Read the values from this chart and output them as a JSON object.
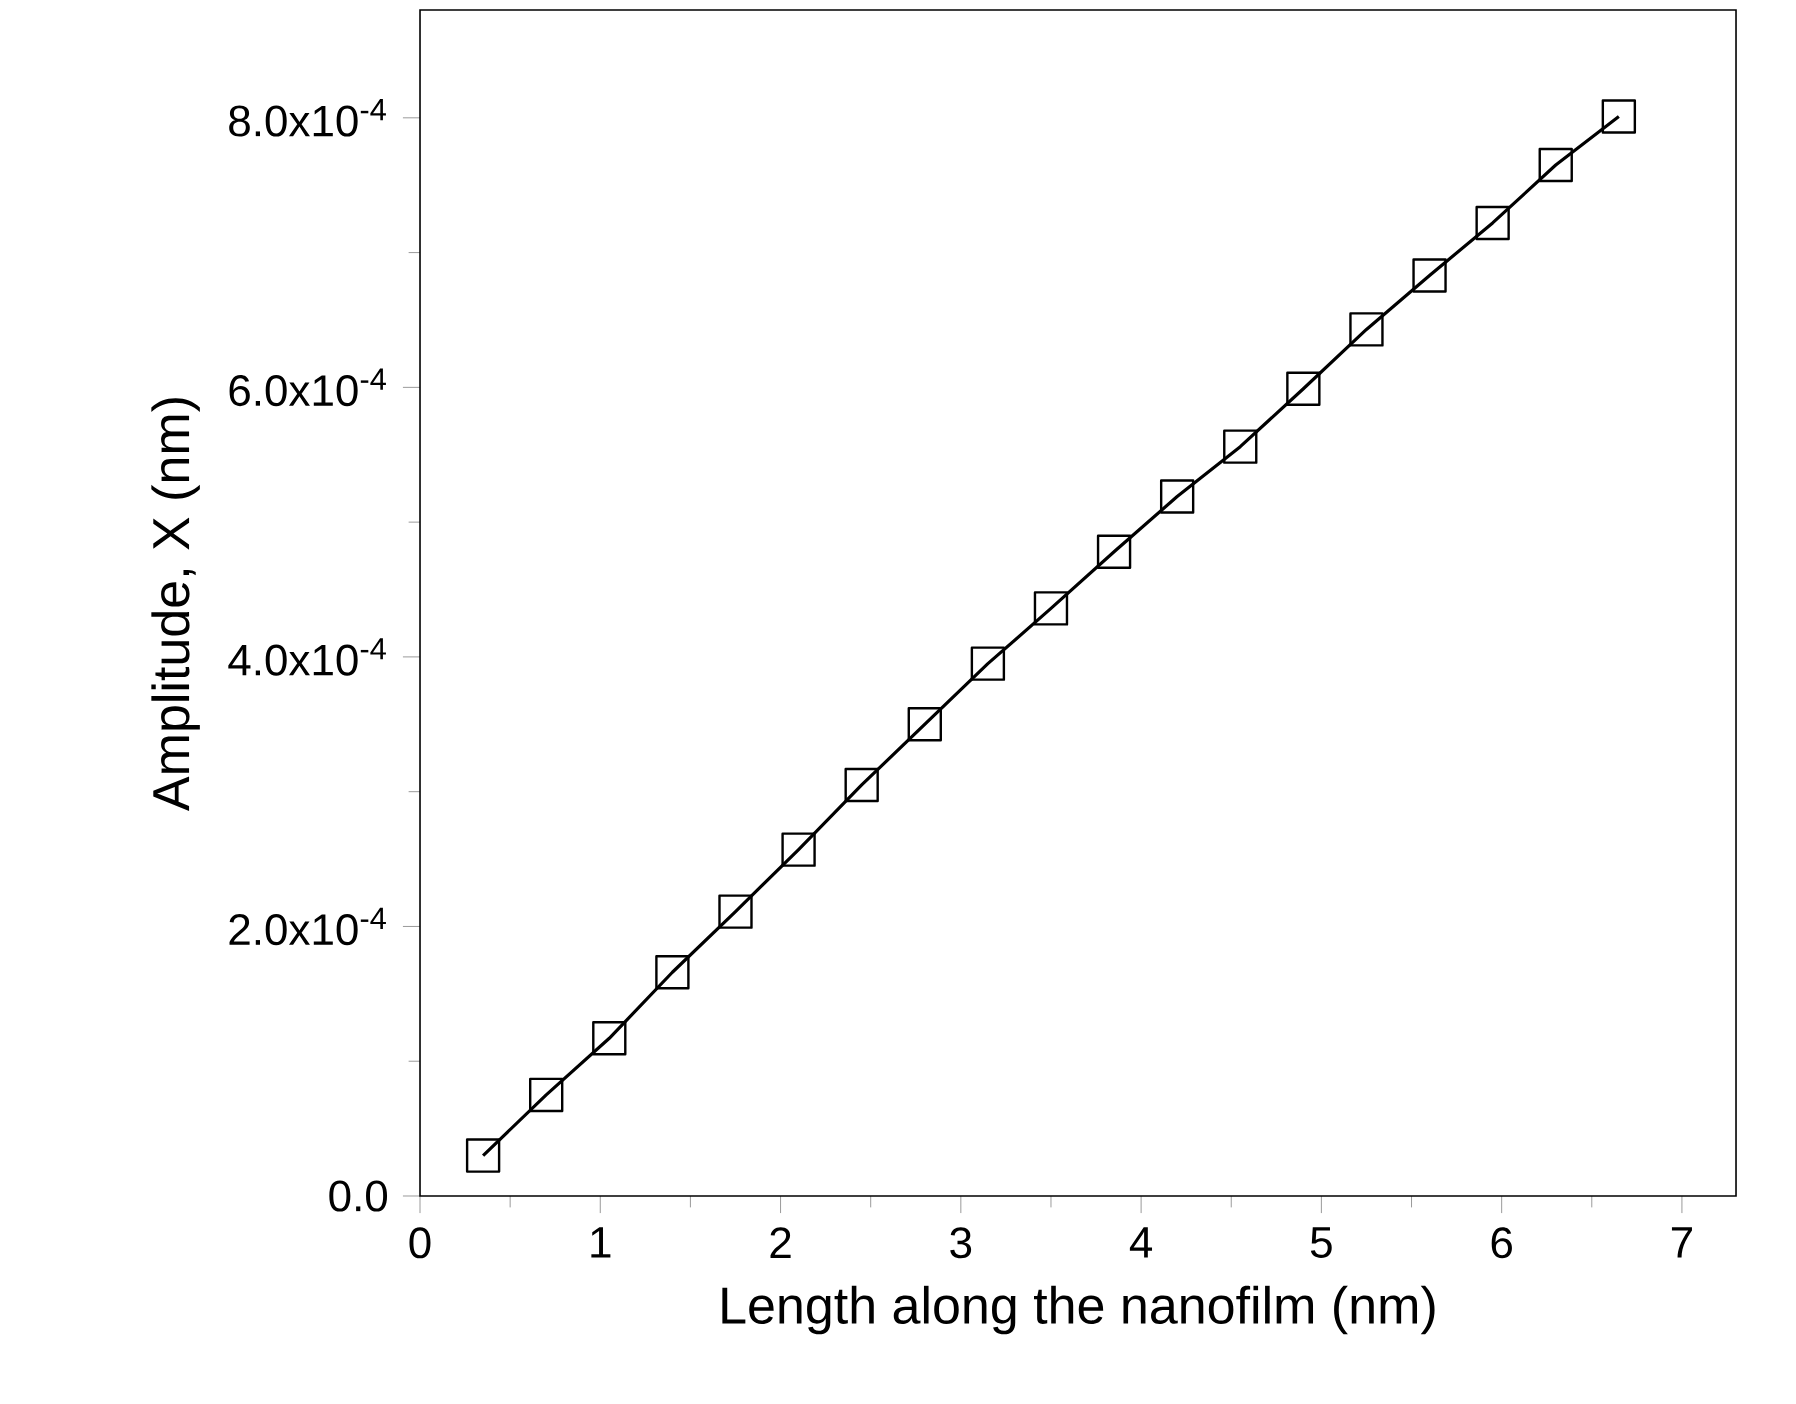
{
  "chart_data": {
    "type": "line",
    "xlabel": "Length along the nanofilm (nm)",
    "ylabel": "Amplitude, X (nm)",
    "x": [
      0.35,
      0.7,
      1.05,
      1.4,
      1.75,
      2.1,
      2.45,
      2.8,
      3.15,
      3.5,
      3.85,
      4.2,
      4.55,
      4.9,
      5.25,
      5.6,
      5.95,
      6.3,
      6.65
    ],
    "series": [
      {
        "color": "#000000",
        "values": [
          3e-05,
          7.5e-05,
          0.000117,
          0.000166,
          0.000211,
          0.000257,
          0.000305,
          0.00035,
          0.000395,
          0.000436,
          0.000478,
          0.000519,
          0.000556,
          0.000599,
          0.000643,
          0.000683,
          0.000722,
          0.000765,
          0.000801
        ]
      }
    ],
    "xlim": [
      0,
      7.3
    ],
    "ylim": [
      0,
      0.00088
    ],
    "xticks": [
      0,
      1,
      2,
      3,
      4,
      5,
      6,
      7
    ],
    "yticks": [
      {
        "value": 0,
        "label": "0.0"
      },
      {
        "value": 0.0002,
        "label": "2.0x10$^{-4}$"
      },
      {
        "value": 0.0004,
        "label": "4.0x10$^{-4}$"
      },
      {
        "value": 0.0006,
        "label": "6.0x10$^{-4}$"
      },
      {
        "value": 0.0008,
        "label": "8.0x10$^{-4}$"
      }
    ],
    "marker": "square",
    "line_style": "solid"
  }
}
